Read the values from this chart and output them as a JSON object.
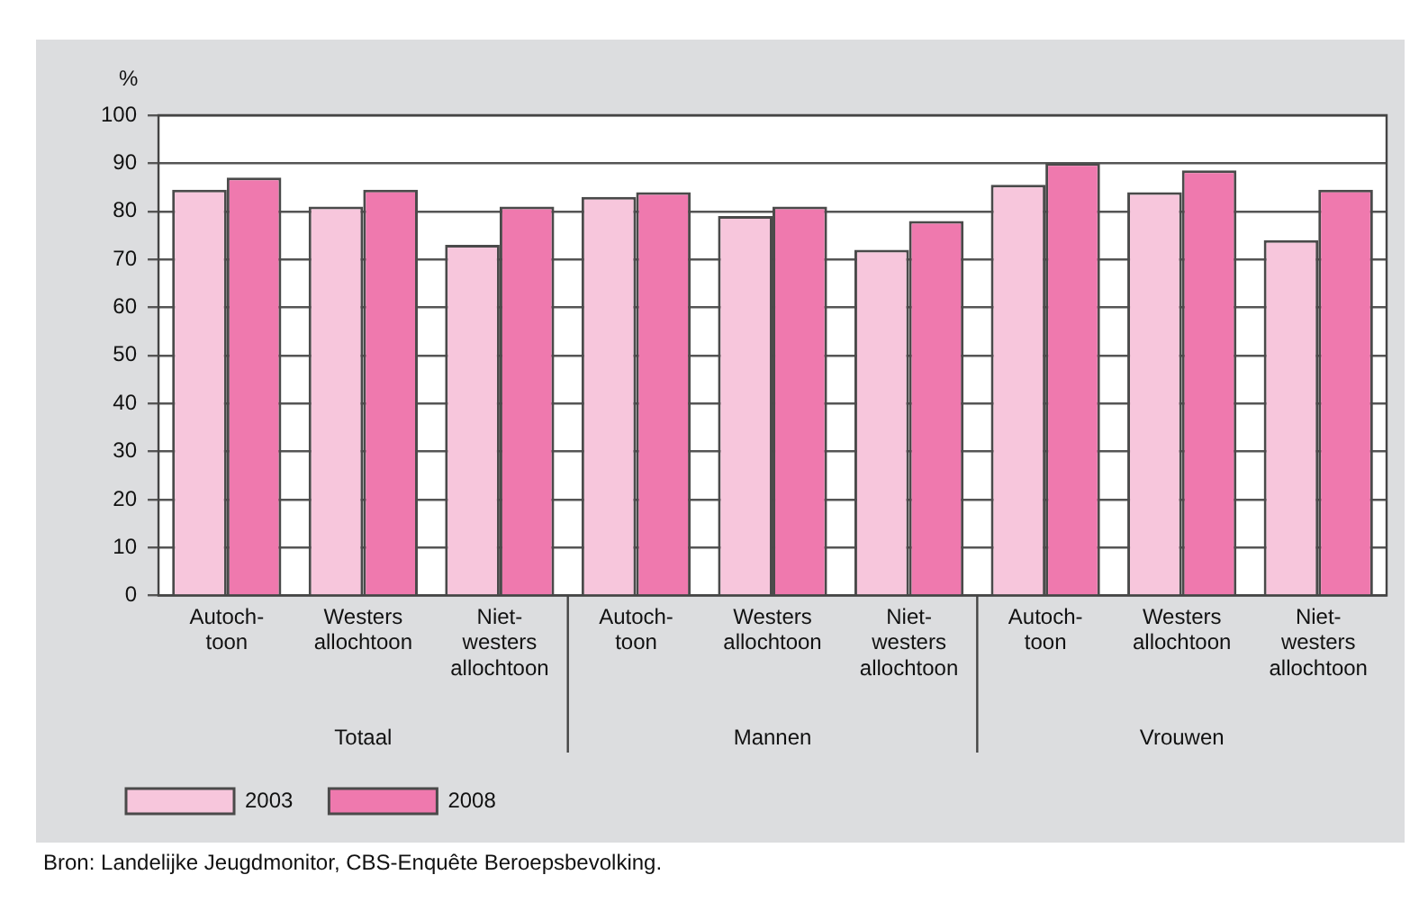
{
  "chart_data": {
    "type": "bar",
    "ylabel": "%",
    "categories": [
      "Autoch-\ntoon",
      "Westers\nallochtoon",
      "Niet-\nwesters\nallochtoon",
      "Autoch-\ntoon",
      "Westers\nallochtoon",
      "Niet-\nwesters\nallochtoon",
      "Autoch-\ntoon",
      "Westers\nallochtoon",
      "Niet-\nwesters\nallochtoon"
    ],
    "series": [
      {
        "name": "2003",
        "color": "#f7c6dc",
        "values": [
          84.5,
          81,
          73,
          83,
          79,
          72,
          85.5,
          84,
          74
        ]
      },
      {
        "name": "2008",
        "color": "#ef79ae",
        "values": [
          87,
          84.5,
          81,
          84,
          81,
          78,
          90,
          88.5,
          84.5
        ]
      }
    ],
    "ylim": [
      0,
      100
    ],
    "yticks": [
      0,
      10,
      20,
      30,
      40,
      50,
      60,
      70,
      80,
      90,
      100
    ],
    "grid": "y",
    "legend": "bottom left",
    "annotations": [
      "Totaal",
      "Mannen",
      "Vrouwen",
      "Bron: Landelijke Jeugdmonitor, CBS-Enquête Beroepsbevolking."
    ]
  }
}
